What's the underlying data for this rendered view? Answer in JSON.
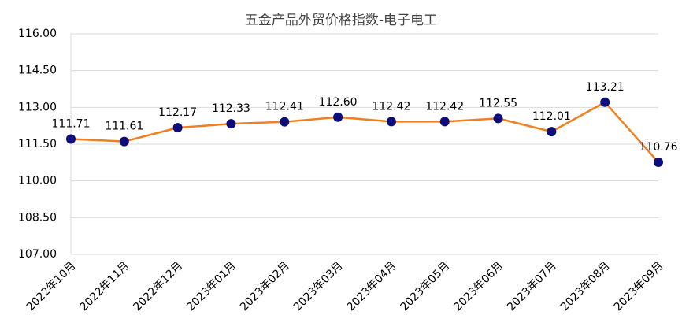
{
  "chart_data": {
    "type": "line",
    "title": "五金产品外贸价格指数-电子电工",
    "categories": [
      "2022年10月",
      "2022年11月",
      "2022年12月",
      "2023年01月",
      "2023年02月",
      "2023年03月",
      "2023年04月",
      "2023年05月",
      "2023年06月",
      "2023年07月",
      "2023年08月",
      "2023年09月"
    ],
    "series": [
      {
        "color": "#f07f1d",
        "marker_color": "#0c0c7a",
        "values": [
          111.71,
          111.61,
          112.17,
          112.33,
          112.41,
          112.6,
          112.42,
          112.42,
          112.55,
          112.01,
          113.21,
          110.76
        ],
        "value_labels": [
          "111.71",
          "111.61",
          "112.17",
          "112.33",
          "112.41",
          "112.60",
          "112.42",
          "112.42",
          "112.55",
          "112.01",
          "113.21",
          "110.76"
        ]
      }
    ],
    "ylim": [
      107,
      116
    ],
    "yticks": [
      {
        "value": 107,
        "label": "107.00"
      },
      {
        "value": 108.5,
        "label": "108.50"
      },
      {
        "value": 110,
        "label": "110.00"
      },
      {
        "value": 111.5,
        "label": "111.50"
      },
      {
        "value": 113,
        "label": "113.00"
      },
      {
        "value": 114.5,
        "label": "114.50"
      },
      {
        "value": 116,
        "label": "116.00"
      }
    ],
    "grid": true
  }
}
